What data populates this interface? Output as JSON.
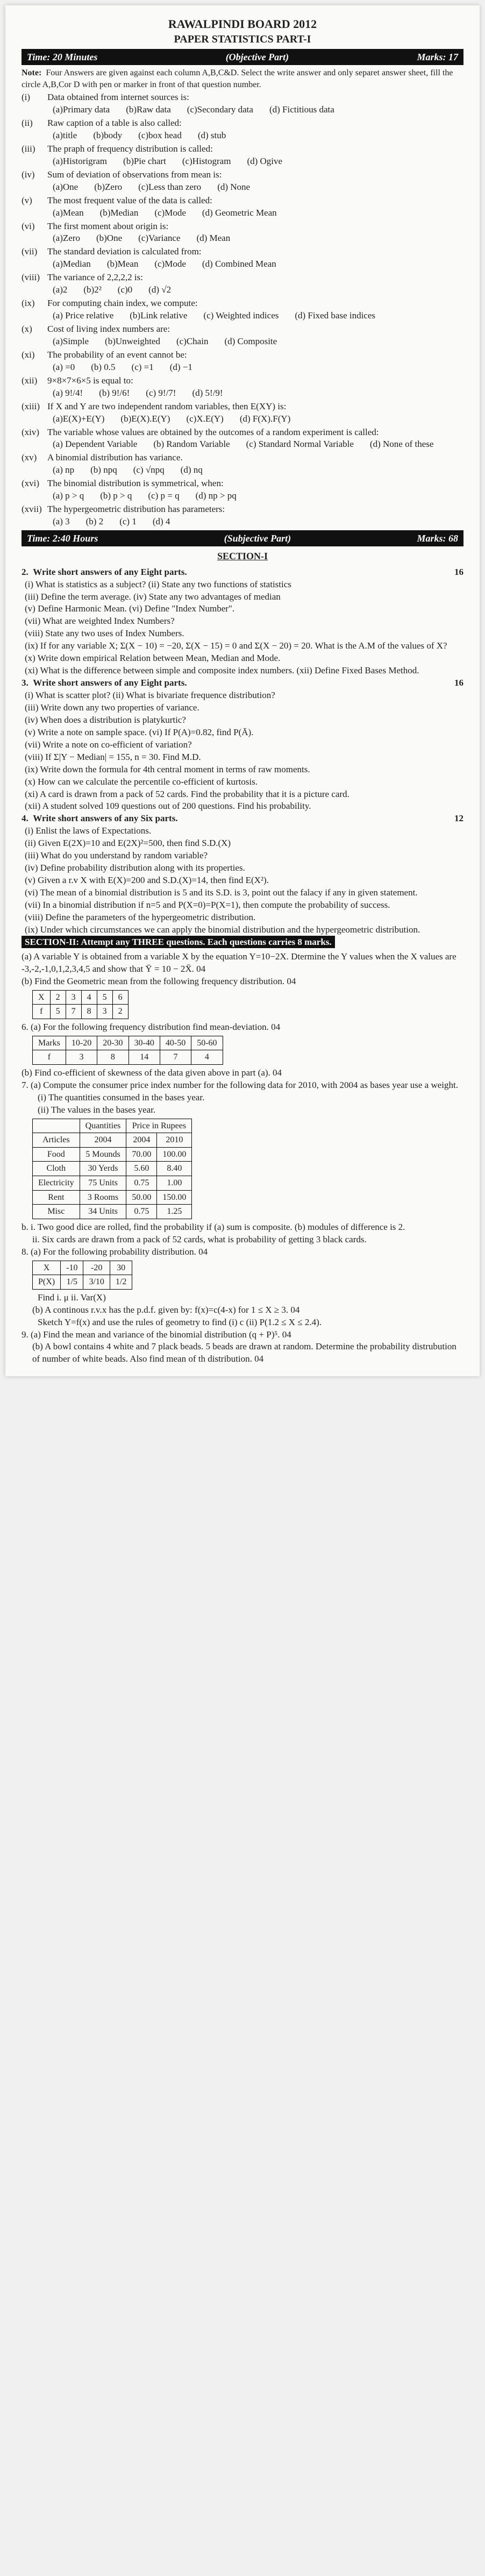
{
  "header": {
    "board": "RAWALPINDI BOARD 2012",
    "paper": "PAPER STATISTICS PART-I"
  },
  "obj_bar": {
    "left": "Time: 20 Minutes",
    "mid": "(Objective Part)",
    "right": "Marks: 17"
  },
  "note": "Four Answers are given against each column A,B,C&D. Select the write answer and only separet answer sheet, fill the circle A,B,Cor D with pen or marker in front of that question number.",
  "mcq": [
    {
      "n": "(i)",
      "t": "Data obtained from internet sources is:",
      "o": [
        "(a)Primary data",
        "(b)Raw data",
        "(c)Secondary data",
        "(d) Fictitious data"
      ]
    },
    {
      "n": "(ii)",
      "t": "Raw caption of a table is also called:",
      "o": [
        "(a)title",
        "(b)body",
        "(c)box head",
        "(d) stub"
      ]
    },
    {
      "n": "(iii)",
      "t": "The praph of frequency distribution is called:",
      "o": [
        "(a)Historigram",
        "(b)Pie chart",
        "(c)Histogram",
        "(d) Ogive"
      ]
    },
    {
      "n": "(iv)",
      "t": "Sum of deviation of observations from mean is:",
      "o": [
        "(a)One",
        "(b)Zero",
        "(c)Less than zero",
        "(d) None"
      ]
    },
    {
      "n": "(v)",
      "t": "The most frequent value of the data is called:",
      "o": [
        "(a)Mean",
        "(b)Median",
        "(c)Mode",
        "(d) Geometric Mean"
      ]
    },
    {
      "n": "(vi)",
      "t": "The first moment about origin is:",
      "o": [
        "(a)Zero",
        "(b)One",
        "(c)Variance",
        "(d) Mean"
      ]
    },
    {
      "n": "(vii)",
      "t": "The standard deviation is calculated from:",
      "o": [
        "(a)Median",
        "(b)Mean",
        "(c)Mode",
        "(d) Combined Mean"
      ]
    },
    {
      "n": "(viii)",
      "t": "The variance of 2,2,2,2 is:",
      "o": [
        "(a)2",
        "(b)2²",
        "(c)0",
        "(d) √2"
      ]
    },
    {
      "n": "(ix)",
      "t": "For computing chain index, we compute:",
      "o": [
        "(a) Price relative",
        "(b)Link relative",
        "(c) Weighted indices",
        "(d) Fixed base indices"
      ]
    },
    {
      "n": "(x)",
      "t": "Cost of living index numbers are:",
      "o": [
        "(a)Simple",
        "(b)Unweighted",
        "(c)Chain",
        "(d) Composite"
      ]
    },
    {
      "n": "(xi)",
      "t": "The probability of an event cannot be:",
      "o": [
        "(a) =0",
        "(b) 0.5",
        "(c) =1",
        "(d) −1"
      ]
    },
    {
      "n": "(xii)",
      "t": "9×8×7×6×5 is equal to:",
      "o": [
        "(a) 9!/4!",
        "(b) 9!/6!",
        "(c) 9!/7!",
        "(d) 5!/9!"
      ]
    },
    {
      "n": "(xiii)",
      "t": "If X and Y are two independent random variables, then E(XY) is:",
      "o": [
        "(a)E(X)+E(Y)",
        "(b)E(X).E(Y)",
        "(c)X.E(Y)",
        "(d) F(X).F(Y)"
      ]
    },
    {
      "n": "(xiv)",
      "t": "The variable whose values are obtained by the outcomes of a random experiment is called:",
      "o": [
        "(a) Dependent Variable",
        "(b) Random Variable",
        "(c) Standard Normal Variable",
        "(d) None of these"
      ]
    },
    {
      "n": "(xv)",
      "t": "A binomial distribution has variance.",
      "o": [
        "(a) np",
        "(b) npq",
        "(c) √npq",
        "(d) nq"
      ]
    },
    {
      "n": "(xvi)",
      "t": "The binomial distribution is symmetrical, when:",
      "o": [
        "(a) p > q",
        "(b) p > q",
        "(c) p = q",
        "(d) np > pq"
      ]
    },
    {
      "n": "(xvii)",
      "t": "The hypergeometric distribution has parameters:",
      "o": [
        "(a) 3",
        "(b) 2",
        "(c) 1",
        "(d) 4"
      ]
    }
  ],
  "subj_bar": {
    "left": "Time: 2:40 Hours",
    "mid": "(Subjective Part)",
    "right": "Marks: 68"
  },
  "sec1_title": "SECTION-I",
  "q2": {
    "head": "Write short answers of any Eight parts.",
    "marks": "16",
    "items": [
      "(i) What is statistics as a subject?  (ii) State any two functions of statistics",
      "(iii) Define the term average.  (iv) State any two advantages of median",
      "(v) Define Harmonic Mean.  (vi) Define \"Index Number\".",
      "(vii) What are weighted Index Numbers?",
      "(viii) State any two uses of Index Numbers.",
      "(ix) If for any variable X; Σ(X − 10) = −20, Σ(X − 15) = 0  and Σ(X − 20) = 20. What is the A.M of the values of X?",
      "(x) Write down empirical Relation between Mean, Median and Mode.",
      "(xi) What is the difference between simple and composite index numbers.  (xii) Define Fixed Bases Method."
    ]
  },
  "q3": {
    "head": "Write short answers of any Eight parts.",
    "marks": "16",
    "items": [
      "(i) What is scatter plot?  (ii) What is bivariate frequence distribution?",
      "(iii) Write down any two properties of variance.",
      "(iv) When does a distribution is platykurtic?",
      "(v) Write a note on sample space.  (vi) If P(A)=0.82, find P(Ā).",
      "(vii) Write a note on co-efficient of variation?",
      "(viii) If Σ|Y − Median| = 155, n = 30. Find M.D.",
      "(ix) Write down the formula for 4th central moment in terms of raw moments.",
      "(x) How can we calculate the percentile co-efficient of kurtosis.",
      "(xi) A card is drawn from a pack of 52 cards. Find the probability that it is a picture card.",
      "(xii) A student solved 109 questions out of 200 questions. Find his probability."
    ]
  },
  "q4": {
    "head": "Write short answers of any Six parts.",
    "marks": "12",
    "items": [
      "(i) Enlist the laws of Expectations.",
      "(ii) Given E(2X)=10 and E(2X)²=500, then find S.D.(X)",
      "(iii) What do you understand by random variable?",
      "(iv) Define probability distribution along with its properties.",
      "(v) Given a r.v X with E(X)=200 and S.D.(X)=14, then find E(X²).",
      "(vi) The mean of a binomial distribution is 5 and its S.D. is 3, point out the falacy if any in given statement.",
      "(vii) In a binomial distribution if n=5 and P(X=0)=P(X=1), then compute the probability of success.",
      "(viii) Define the parameters of the hypergeometric distribution.",
      "(ix) Under which circumstances we can apply the binomial distribution and the hypergeometric distribution."
    ]
  },
  "sec2_label": "SECTION-II: Attempt any THREE questions. Each questions carries 8 marks.",
  "q5a": "(a) A variable Y is obtained from a variable X by the equation Y=10−2X. Dtermine the Y values when the X values are -3,-2,-1,0,1,2,3,4,5 and show that Ȳ = 10 − 2X̄.   04",
  "q5b": "(b) Find the Geometric mean from the following frequency distribution.   04",
  "t5": {
    "h": [
      "X",
      "2",
      "3",
      "4",
      "5",
      "6"
    ],
    "r": [
      "f",
      "5",
      "7",
      "8",
      "3",
      "2"
    ]
  },
  "q6a": "(a) For the following frequency distribution find mean-deviation. 04",
  "t6": {
    "h": [
      "Marks",
      "10-20",
      "20-30",
      "30-40",
      "40-50",
      "50-60"
    ],
    "r": [
      "f",
      "3",
      "8",
      "14",
      "7",
      "4"
    ]
  },
  "q6b": "(b) Find co-efficient of skewness of the data given above in part (a). 04",
  "q7a": "(a) Compute the consumer price index number for the following data for 2010, with 2004 as bases year use a weight.",
  "q7i": "(i) The quantities consumed in the bases year.",
  "q7ii": "(ii) The values in the bases year.",
  "t7": {
    "cols": [
      "",
      "Quantities",
      "Price in Rupees",
      ""
    ],
    "sub": [
      "Articles",
      "2004",
      "2004",
      "2010"
    ],
    "rows": [
      [
        "Food",
        "5 Mounds",
        "70.00",
        "100.00"
      ],
      [
        "Cloth",
        "30 Yerds",
        "5.60",
        "8.40"
      ],
      [
        "Electricity",
        "75 Units",
        "0.75",
        "1.00"
      ],
      [
        "Rent",
        "3 Rooms",
        "50.00",
        "150.00"
      ],
      [
        "Misc",
        "34 Units",
        "0.75",
        "1.25"
      ]
    ]
  },
  "q7b": "b. i. Two good dice are rolled, find the probability if (a) sum is composite. (b) modules of difference is 2.",
  "q7bii": "ii. Six cards are drawn from a pack of 52 cards, what is probability of getting 3 black cards.",
  "q8a": "(a) For the following probability distribution.   04",
  "t8": {
    "h": [
      "X",
      "-10",
      "-20",
      "30"
    ],
    "r": [
      "P(X)",
      "1/5",
      "3/10",
      "1/2"
    ]
  },
  "q8a2": "Find i. μ   ii. Var(X)",
  "q8b": "(b) A continous r.v.x has the p.d.f. given by: f(x)=c(4-x) for 1 ≤ X ≥ 3.   04",
  "q8b2": "Sketch Y=f(x) and use the rules of geometry to find (i) c (ii) P(1.2 ≤ X ≤ 2.4).",
  "q9a": "(a) Find the mean and variance of the binomial distribution (q + P)⁵.   04",
  "q9b": "(b) A bowl contains 4 white and 7 plack beads. 5 beads are drawn at random. Determine the probability distrubution of number of white beads. Also find mean of th distribution.   04"
}
